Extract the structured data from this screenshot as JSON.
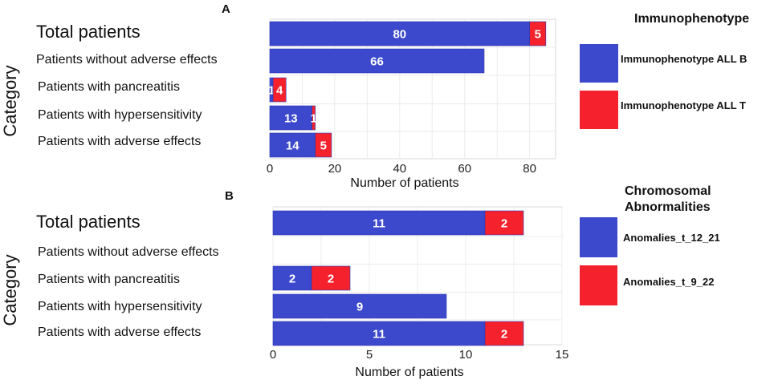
{
  "chart_data": [
    {
      "type": "bar",
      "orientation": "horizontal",
      "stacked": true,
      "panel_label": "A",
      "categories": [
        "Total patients",
        "Patients without adverse effects",
        "Patients with pancreatitis",
        "Patients with hypersensitivity",
        "Patients with adverse effects"
      ],
      "series": [
        {
          "name": "Immunophenotype ALL B",
          "color": "#3d49cc",
          "values": [
            80,
            66,
            1,
            13,
            14
          ]
        },
        {
          "name": "Immunophenotype ALL T",
          "color": "#f5222d",
          "values": [
            5,
            0,
            4,
            1,
            5
          ]
        }
      ],
      "xlabel": "Number of patients",
      "ylabel": "Category",
      "xlim": [
        0,
        88
      ],
      "xticks": [
        0,
        20,
        40,
        60,
        80
      ],
      "legend_title": "Immunophenotype",
      "legend_position": "right"
    },
    {
      "type": "bar",
      "orientation": "horizontal",
      "stacked": true,
      "panel_label": "B",
      "categories": [
        "Total patients",
        "Patients without adverse effects",
        "Patients with pancreatitis",
        "Patients with hypersensitivity",
        "Patients with adverse effects"
      ],
      "series": [
        {
          "name": "Anomalies_t_12_21",
          "color": "#3d49cc",
          "values": [
            11,
            0,
            2,
            9,
            11
          ]
        },
        {
          "name": "Anomalies_t_9_22",
          "color": "#f5222d",
          "values": [
            2,
            0,
            2,
            0,
            2
          ]
        }
      ],
      "xlabel": "Number of patients",
      "ylabel": "Category",
      "xlim": [
        0,
        15
      ],
      "xticks": [
        0,
        5,
        10,
        15
      ],
      "legend_title": "Chromosomal Abnormalities",
      "legend_position": "right"
    }
  ]
}
